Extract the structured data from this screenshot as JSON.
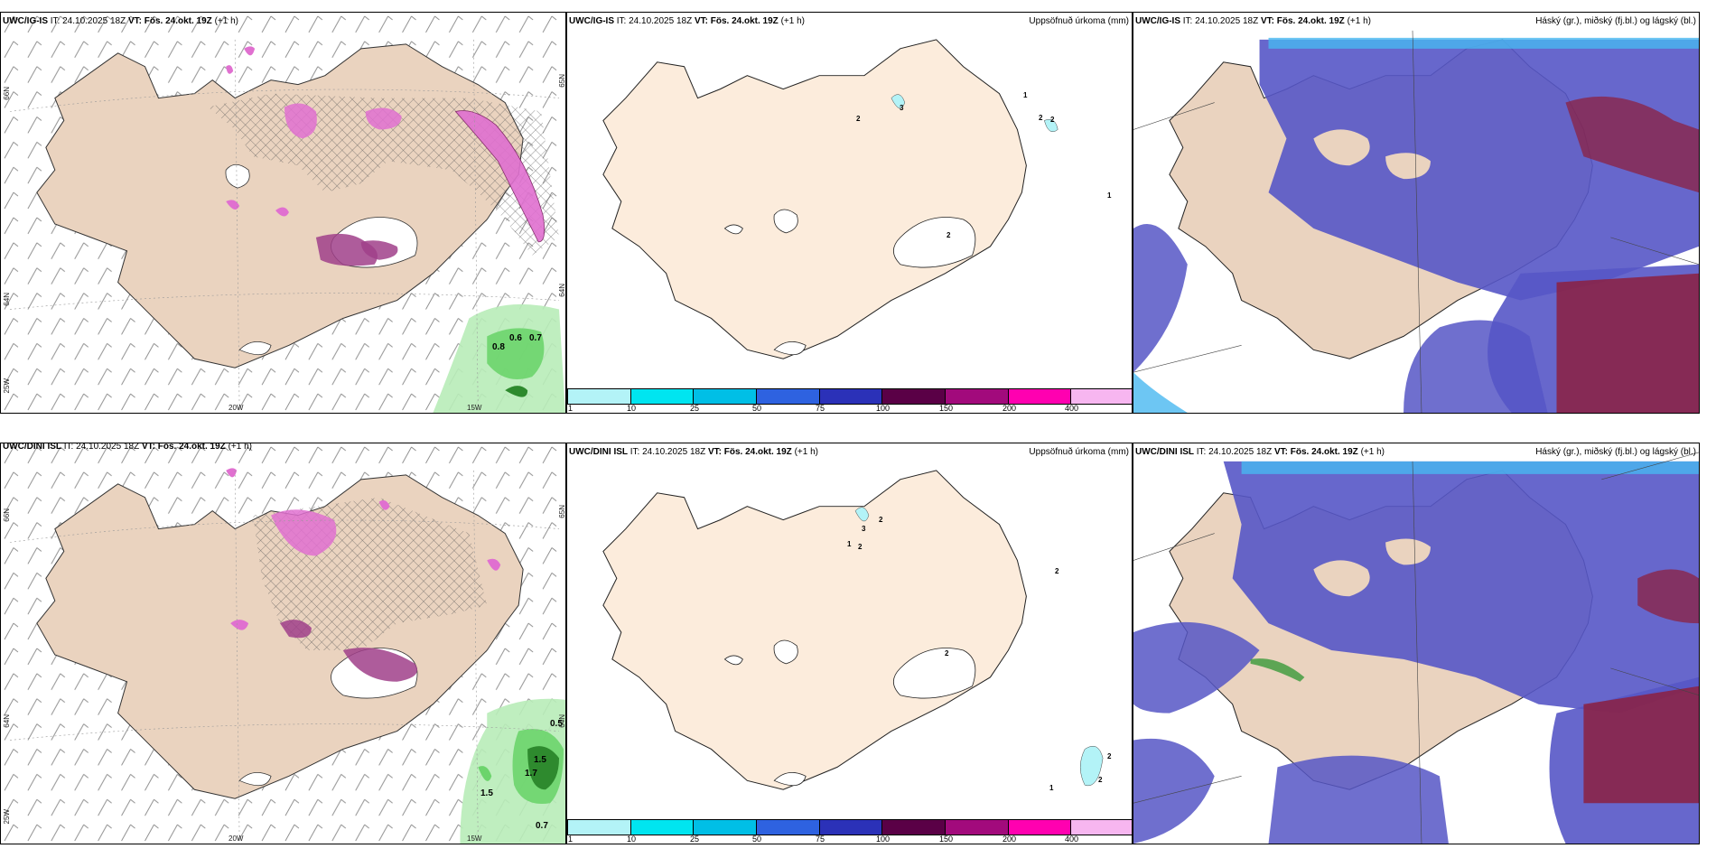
{
  "panels": [
    {
      "model": "UWC/IG-IS",
      "it_label": "IT:",
      "it_value": "24.10.2025 18Z",
      "vt_label": "VT:",
      "vt_value": "Fös. 24.okt. 19Z",
      "offset": "(+1 h)",
      "right_title": "",
      "axis": {
        "lat1": "66N",
        "lat2": "64N",
        "lat3": "25W",
        "lon1": "20W",
        "lon2": "15W",
        "lat_r1": "65N",
        "lat_r2": "64N"
      },
      "labels": [
        "0.6",
        "0.7",
        "0.8"
      ]
    },
    {
      "model": "UWC/IG-IS",
      "it_label": "IT:",
      "it_value": "24.10.2025 18Z",
      "vt_label": "VT:",
      "vt_value": "Fös. 24.okt. 19Z",
      "offset": "(+1 h)",
      "right_title": "Uppsöfnuð úrkoma (mm)",
      "labels": [
        "2",
        "3",
        "1",
        "2",
        "2",
        "1",
        "2"
      ]
    },
    {
      "model": "UWC/IG-IS",
      "it_label": "IT:",
      "it_value": "24.10.2025 18Z",
      "vt_label": "VT:",
      "vt_value": "Fös. 24.okt. 19Z",
      "offset": "(+1 h)",
      "right_title": "Háský (gr.), miðský (fj.bl.) og lágský (bl.)"
    },
    {
      "model": "UWC/DINI ISL",
      "it_label": "IT:",
      "it_value": "24.10.2025 18Z",
      "vt_label": "VT:",
      "vt_value": "Fös. 24.okt. 19Z",
      "offset": "(+1 h)",
      "right_title": "",
      "axis": {
        "lat1": "66N",
        "lat2": "64N",
        "lat3": "25W",
        "lon1": "20W",
        "lon2": "15W",
        "lat_r1": "65N",
        "lat_r2": "64N"
      },
      "labels": [
        "0.5",
        "1.5",
        "0.7",
        "1.7",
        "1.5"
      ]
    },
    {
      "model": "UWC/DINI ISL",
      "it_label": "IT:",
      "it_value": "24.10.2025 18Z",
      "vt_label": "VT:",
      "vt_value": "Fös. 24.okt. 19Z",
      "offset": "(+1 h)",
      "right_title": "Uppsöfnuð úrkoma (mm)",
      "labels": [
        "3",
        "2",
        "1",
        "2",
        "2",
        "2",
        "2",
        "2",
        "1"
      ]
    },
    {
      "model": "UWC/DINI ISL",
      "it_label": "IT:",
      "it_value": "24.10.2025 18Z",
      "vt_label": "VT:",
      "vt_value": "Fös. 24.okt. 19Z",
      "offset": "(+1 h)",
      "right_title": "Háský (gr.), miðský (fj.bl.) og lágský (bl.)"
    }
  ],
  "colorbar": {
    "labels": [
      "1",
      "10",
      "25",
      "50",
      "75",
      "100",
      "150",
      "200",
      "400"
    ],
    "colors": [
      "#b3f3f7",
      "#00e5f0",
      "#00bfe6",
      "#2e62e0",
      "#2b31b8",
      "#5a0046",
      "#a20a7c",
      "#ff00b0",
      "#f7b6f0"
    ]
  },
  "colors": {
    "land": "#f5dccd",
    "land_beige": "#ead3bf",
    "sea": "#ffffff",
    "cloud_high": "#5656c6",
    "cloud_mid": "#8c2040",
    "cloud_low": "#49b8f0",
    "precip_green": "#6cd46c",
    "precip_pink": "#e070d0"
  }
}
